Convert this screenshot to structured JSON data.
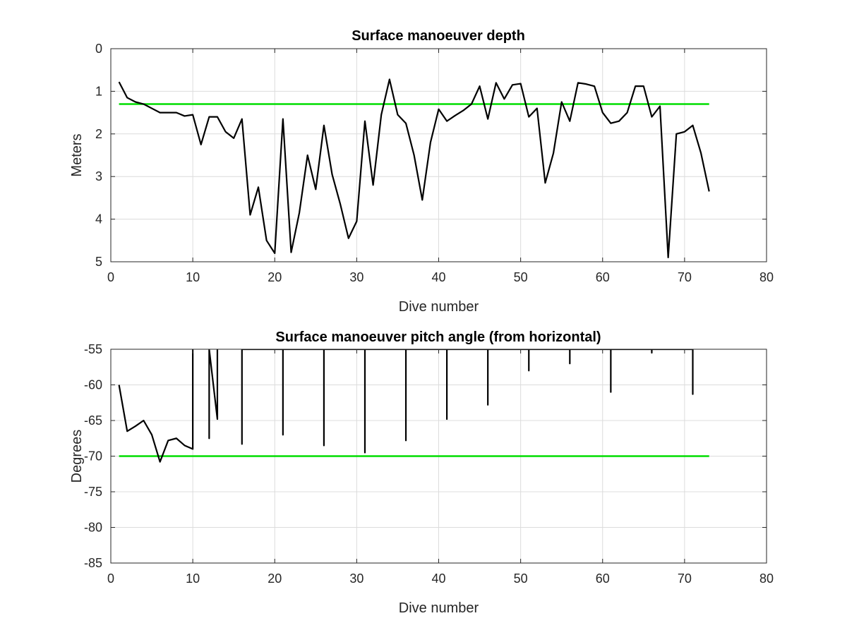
{
  "chart_data": [
    {
      "type": "line",
      "title": "Surface manoeuver depth",
      "xlabel": "Dive number",
      "ylabel": "Meters",
      "xlim": [
        0,
        80
      ],
      "ylim": [
        0,
        5
      ],
      "y_reversed": true,
      "grid": true,
      "xticks": [
        "0",
        "10",
        "20",
        "30",
        "40",
        "50",
        "60",
        "70",
        "80"
      ],
      "yticks": [
        "0",
        "1",
        "2",
        "3",
        "4",
        "5"
      ],
      "colors": {
        "data": "#000000",
        "reference": "#00dd00"
      },
      "series": [
        {
          "x": [
            1,
            2,
            3,
            4,
            5,
            6,
            7,
            8,
            9,
            10,
            11,
            12,
            13,
            14,
            15,
            16,
            17,
            18,
            19,
            20,
            21,
            22,
            23,
            24,
            25,
            26,
            27,
            28,
            29,
            30,
            31,
            32,
            33,
            34,
            35,
            36,
            37,
            38,
            39,
            40,
            41,
            42,
            43,
            44,
            45,
            46,
            47,
            48,
            49,
            50,
            51,
            52,
            53,
            54,
            55,
            56,
            57,
            58,
            59,
            60,
            61,
            62,
            63,
            64,
            65,
            66,
            67,
            68,
            69,
            70,
            71,
            72,
            73
          ],
          "values": [
            0.78,
            1.15,
            1.25,
            1.3,
            1.4,
            1.5,
            1.5,
            1.5,
            1.58,
            1.55,
            2.25,
            1.6,
            1.6,
            1.95,
            2.1,
            1.65,
            3.9,
            3.25,
            4.5,
            4.8,
            1.65,
            4.78,
            3.85,
            2.5,
            3.3,
            1.8,
            2.95,
            3.65,
            4.45,
            4.05,
            1.7,
            3.2,
            1.55,
            0.72,
            1.55,
            1.75,
            2.5,
            3.55,
            2.2,
            1.42,
            1.7,
            1.57,
            1.45,
            1.3,
            0.88,
            1.65,
            0.8,
            1.18,
            0.85,
            0.82,
            1.6,
            1.4,
            3.15,
            2.45,
            1.25,
            1.7,
            0.8,
            0.83,
            0.88,
            1.5,
            1.75,
            1.7,
            1.5,
            0.88,
            0.88,
            1.6,
            1.35,
            4.9,
            2.0,
            1.95,
            1.8,
            2.45,
            3.35
          ]
        },
        {
          "x": [
            1,
            73
          ],
          "values": [
            1.3,
            1.3
          ]
        }
      ]
    },
    {
      "type": "line",
      "title": "Surface manoeuver pitch angle (from horizontal)",
      "xlabel": "Dive number",
      "ylabel": "Degrees",
      "xlim": [
        0,
        80
      ],
      "ylim": [
        -85,
        -55
      ],
      "grid": true,
      "xticks": [
        "0",
        "10",
        "20",
        "30",
        "40",
        "50",
        "60",
        "70",
        "80"
      ],
      "yticks": [
        "-55",
        "-60",
        "-65",
        "-70",
        "-75",
        "-80",
        "-85"
      ],
      "colors": {
        "data": "#000000",
        "reference": "#00dd00"
      },
      "series": [
        {
          "x": [
            1,
            2,
            3,
            4,
            5,
            6,
            7,
            8,
            9,
            10,
            10,
            10,
            12,
            12,
            12,
            13,
            13,
            13,
            16,
            16,
            16,
            21,
            21,
            21,
            26,
            26,
            26,
            31,
            31,
            31,
            36,
            36,
            36,
            41,
            41,
            41,
            46,
            46,
            46,
            51,
            51,
            51,
            56,
            56,
            56,
            61,
            61,
            61,
            66,
            66,
            66,
            71,
            71,
            71
          ],
          "values": [
            -60,
            -66.5,
            -65.8,
            -65,
            -67,
            -70.8,
            -67.8,
            -67.5,
            -68.5,
            -69,
            -55,
            null,
            -55,
            -67.5,
            -55,
            -64.8,
            -55,
            null,
            -55,
            -68.3,
            -55,
            -55,
            -67,
            -55,
            -55,
            -68.5,
            -55,
            -55,
            -69.5,
            -55,
            -55,
            -67.8,
            -55,
            -55,
            -64.8,
            -55,
            -55,
            -62.8,
            -55,
            -55,
            -58,
            -55,
            -55,
            -57,
            -55,
            -55,
            -61,
            -55,
            -55,
            -55.5,
            -55,
            -55,
            -61.3,
            -55
          ]
        },
        {
          "x": [
            1,
            73
          ],
          "values": [
            -70,
            -70
          ]
        }
      ]
    }
  ]
}
